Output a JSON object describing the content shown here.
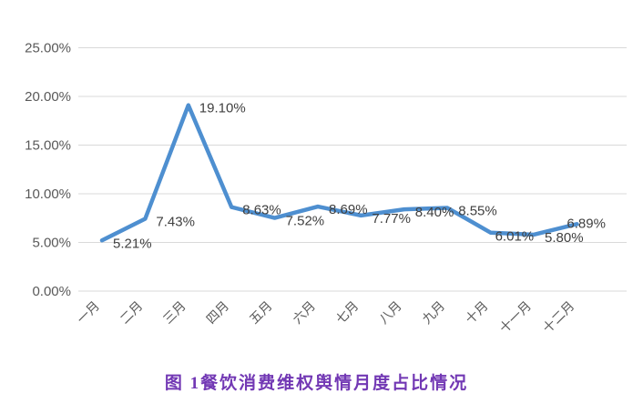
{
  "figure_title": "图 1餐饮消费维权舆情月度占比情况",
  "chart_data": {
    "type": "line",
    "title": "",
    "xlabel": "",
    "ylabel": "",
    "categories": [
      "一月",
      "二月",
      "三月",
      "四月",
      "五月",
      "六月",
      "七月",
      "八月",
      "九月",
      "十月",
      "十一月",
      "十二月"
    ],
    "values": [
      5.21,
      7.43,
      19.1,
      8.63,
      7.52,
      8.69,
      7.77,
      8.4,
      8.55,
      6.01,
      5.8,
      6.89
    ],
    "point_labels": [
      "5.21%",
      "7.43%",
      "19.10%",
      "8.63%",
      "7.52%",
      "8.69%",
      "7.77%",
      "8.40%",
      "8.55%",
      "6.01%",
      "5.80%",
      "6.89%"
    ],
    "ylim": [
      0,
      25
    ],
    "ytick_values": [
      0,
      5,
      10,
      15,
      20,
      25
    ],
    "ytick_labels": [
      "0.00%",
      "5.00%",
      "10.00%",
      "15.00%",
      "20.00%",
      "25.00%"
    ],
    "grid": true,
    "legend": "none",
    "x_labels_rotation_deg": -45,
    "line_color": "#4E8FD0",
    "gridline_color": "#D9D9D9",
    "axis_text_color": "#595959",
    "data_label_color": "#404040",
    "caption_color": "#7238B4"
  }
}
